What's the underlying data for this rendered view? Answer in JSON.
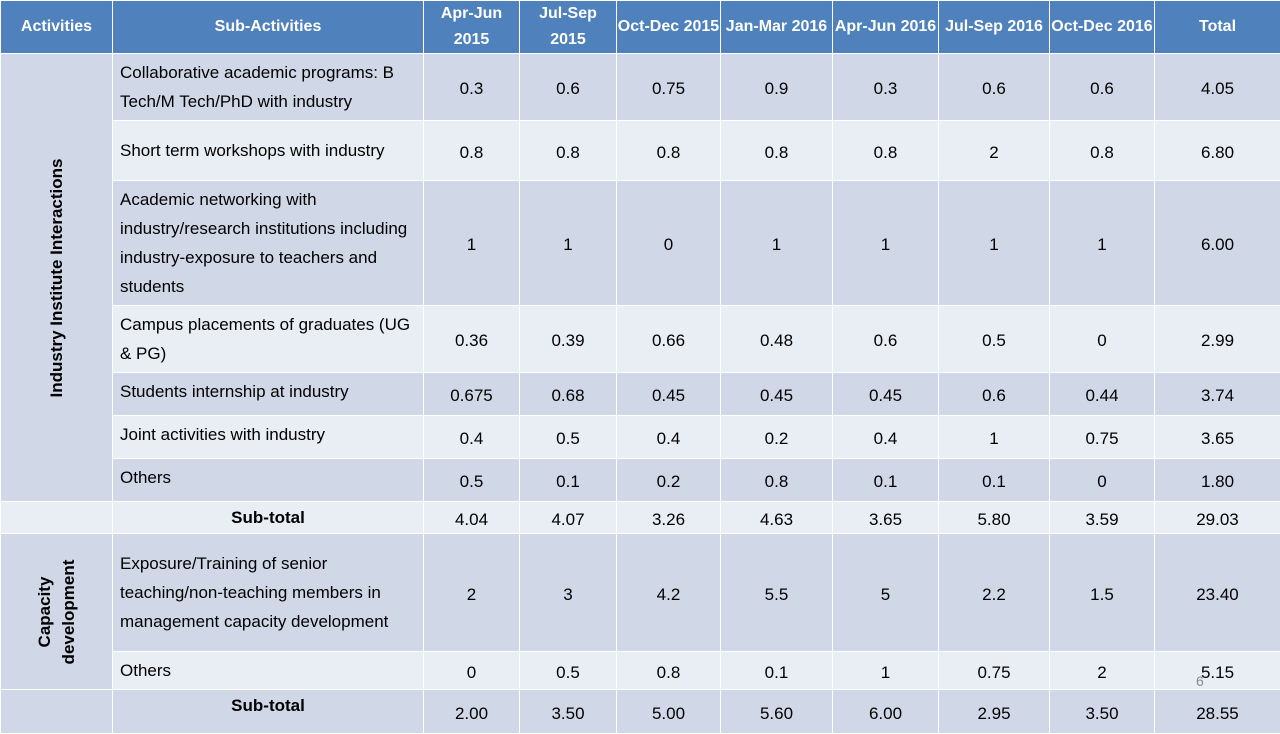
{
  "headers": [
    "Activities",
    "Sub-Activities",
    "Apr-Jun 2015",
    "Jul-Sep 2015",
    "Oct-Dec 2015",
    "Jan-Mar 2016",
    "Apr-Jun 2016",
    "Jul-Sep 2016",
    "Oct-Dec 2016",
    "Total"
  ],
  "section1": {
    "label": "Industry Institute Interactions",
    "rows": [
      {
        "sub": "Collaborative academic programs: B Tech/M Tech/PhD with industry",
        "v": [
          "0.3",
          "0.6",
          "0.75",
          "0.9",
          "0.3",
          "0.6",
          "0.6",
          "4.05"
        ]
      },
      {
        "sub": "Short term workshops with industry",
        "v": [
          "0.8",
          "0.8",
          "0.8",
          "0.8",
          "0.8",
          "2",
          "0.8",
          "6.80"
        ]
      },
      {
        "sub": "Academic networking with industry/research institutions including industry-exposure to teachers and students",
        "v": [
          "1",
          "1",
          "0",
          "1",
          "1",
          "1",
          "1",
          "6.00"
        ]
      },
      {
        "sub": "Campus placements of graduates (UG & PG)",
        "v": [
          "0.36",
          "0.39",
          "0.66",
          "0.48",
          "0.6",
          "0.5",
          "0",
          "2.99"
        ]
      },
      {
        "sub": "Students internship at industry",
        "v": [
          "0.675",
          "0.68",
          "0.45",
          "0.45",
          "0.45",
          "0.6",
          "0.44",
          "3.74"
        ]
      },
      {
        "sub": "Joint activities with industry",
        "v": [
          "0.4",
          "0.5",
          "0.4",
          "0.2",
          "0.4",
          "1",
          "0.75",
          "3.65"
        ]
      },
      {
        "sub": "Others",
        "v": [
          "0.5",
          "0.1",
          "0.2",
          "0.8",
          "0.1",
          "0.1",
          "0",
          "1.80"
        ]
      }
    ],
    "subtotal": {
      "label": "Sub-total",
      "v": [
        "4.04",
        "4.07",
        "3.26",
        "4.63",
        "3.65",
        "5.80",
        "3.59",
        "29.03"
      ]
    }
  },
  "section2": {
    "label": "Capacity development",
    "rows": [
      {
        "sub": "Exposure/Training of senior teaching/non-teaching members in management capacity development",
        "v": [
          "2",
          "3",
          "4.2",
          "5.5",
          "5",
          "2.2",
          "1.5",
          "23.40"
        ]
      },
      {
        "sub": "Others",
        "v": [
          "0",
          "0.5",
          "0.8",
          "0.1",
          "1",
          "0.75",
          "2",
          "5.15"
        ]
      }
    ],
    "subtotal": {
      "label": "Sub-total",
      "v": [
        "2.00",
        "3.50",
        "5.00",
        "5.60",
        "6.00",
        "2.95",
        "3.50",
        "28.55"
      ]
    }
  },
  "page_number": "6"
}
